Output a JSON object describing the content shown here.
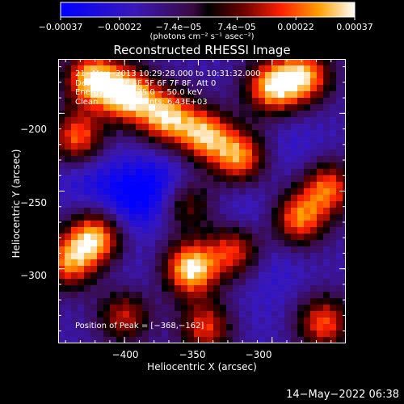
{
  "colorbar": {
    "ticks": [
      "−0.00037",
      "−0.00022",
      "−7.4e−05",
      "7.4e−05",
      "0.00022",
      "0.00037"
    ],
    "units": "(photons cm⁻² s⁻¹ asec⁻²)",
    "colors": [
      "#0000ff",
      "#2a1aa0",
      "#5a1a8a",
      "#3a0000",
      "#ff2200",
      "#ffa000",
      "#ffffff"
    ]
  },
  "chart_data": {
    "type": "heatmap",
    "title": "Reconstructed RHESSI Image",
    "xlabel": "Heliocentric X (arcsec)",
    "ylabel": "Heliocentric Y (arcsec)",
    "xlim": [
      -445,
      -250
    ],
    "ylim": [
      -348,
      -165
    ],
    "xticks": [
      -400,
      -350,
      -300
    ],
    "yticks": [
      -200,
      -250,
      -300
    ],
    "xtick_labels": [
      "−400",
      "−350",
      "−300"
    ],
    "ytick_labels": [
      "−200",
      "−250",
      "−300"
    ],
    "zlim": [
      -0.00037,
      0.00037
    ],
    "peak": [
      -368,
      -162
    ],
    "hot_regions": [
      {
        "x": -422,
        "y": -178,
        "value": 0.00033
      },
      {
        "x": -398,
        "y": -188,
        "value": 0.00035
      },
      {
        "x": -372,
        "y": -202,
        "value": 0.0003
      },
      {
        "x": -346,
        "y": -214,
        "value": 0.00028
      },
      {
        "x": -322,
        "y": -228,
        "value": 0.00026
      },
      {
        "x": -300,
        "y": -183,
        "value": 0.0003
      },
      {
        "x": -278,
        "y": -176,
        "value": 0.00027
      },
      {
        "x": -432,
        "y": -216,
        "value": 0.00024
      },
      {
        "x": -420,
        "y": -280,
        "value": 0.00031
      },
      {
        "x": -438,
        "y": -296,
        "value": 0.00022
      },
      {
        "x": -355,
        "y": -300,
        "value": 0.00036
      },
      {
        "x": -325,
        "y": -288,
        "value": 0.0002
      },
      {
        "x": -282,
        "y": -268,
        "value": 0.00024
      },
      {
        "x": -262,
        "y": -248,
        "value": 0.00022
      },
      {
        "x": -345,
        "y": -338,
        "value": 0.00018
      },
      {
        "x": -265,
        "y": -335,
        "value": 0.00021
      },
      {
        "x": -400,
        "y": -330,
        "value": 0.00016
      },
      {
        "x": -358,
        "y": -258,
        "value": 0.00012
      }
    ],
    "cold_regions": [
      {
        "x": -395,
        "y": -255,
        "value": -0.00034
      },
      {
        "x": -372,
        "y": -246,
        "value": -0.0003
      },
      {
        "x": -425,
        "y": -240,
        "value": -0.00026
      },
      {
        "x": -318,
        "y": -266,
        "value": -0.00024
      },
      {
        "x": -300,
        "y": -300,
        "value": -0.00022
      },
      {
        "x": -398,
        "y": -308,
        "value": -0.0002
      },
      {
        "x": -285,
        "y": -223,
        "value": -0.00022
      },
      {
        "x": -310,
        "y": -330,
        "value": -0.00018
      },
      {
        "x": -380,
        "y": -345,
        "value": -0.00016
      }
    ]
  },
  "info": {
    "time": "21−May−2013 10:29:28.000 to 10:31:32.000",
    "detectors": "Detectors: 3F 4F 5F 6F 7F 8F, Att 0",
    "energy": "Energy Range: 25.0 − 50.0 keV",
    "method": "Clean      Total counts: 6.43E+03"
  },
  "peak_label": "Position of Peak = [−368,−162]",
  "footer_date": "14−May−2022 06:38"
}
